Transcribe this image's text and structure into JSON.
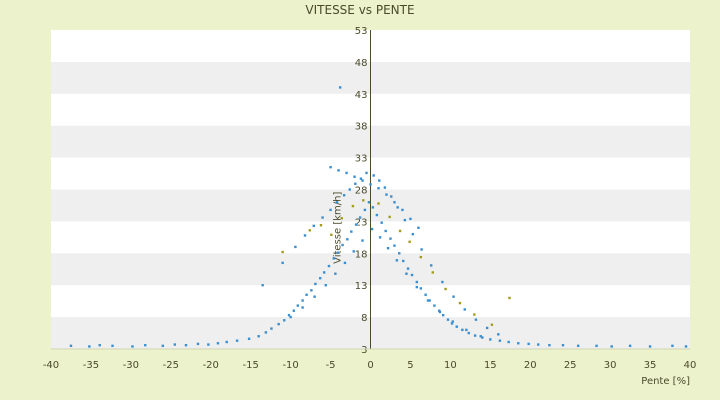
{
  "chart_data": {
    "type": "scatter",
    "title": "VITESSE vs PENTE",
    "xlabel": "Pente [%]",
    "ylabel": "Vitesse [km/h]",
    "xlim": [
      -40,
      40
    ],
    "ylim": [
      3,
      53
    ],
    "x_ticks": [
      -40,
      -35,
      -30,
      -25,
      -20,
      -15,
      -10,
      -5,
      0,
      5,
      10,
      15,
      20,
      25,
      30,
      35,
      40
    ],
    "y_ticks": [
      3,
      8,
      13,
      18,
      23,
      28,
      33,
      38,
      43,
      48,
      53
    ],
    "grid": "horizontal bands",
    "legend": "none",
    "series": [
      {
        "color": "#3c8fcf",
        "x": [
          -37.5,
          -35.2,
          -33.9,
          -32.3,
          -29.8,
          -28.2,
          -26.0,
          -24.5,
          -23.1,
          -21.6,
          -20.3,
          -19.1,
          -18.0,
          -16.7,
          -15.2,
          -14.0,
          -13.1,
          -12.4,
          -11.5,
          -10.8,
          -10.2,
          -9.6,
          -9.1,
          -8.5,
          -8.0,
          -7.4,
          -6.9,
          -6.3,
          -5.8,
          -5.2,
          -4.6,
          -4.1,
          -3.5,
          -2.9,
          -2.4,
          -1.8,
          -1.3,
          -0.7,
          -0.2,
          0.3,
          0.8,
          1.4,
          1.9,
          2.5,
          3.0,
          3.6,
          4.1,
          4.7,
          5.2,
          5.8,
          6.3,
          6.9,
          7.4,
          8.0,
          8.6,
          9.1,
          9.7,
          10.2,
          10.8,
          11.5,
          12.3,
          13.1,
          14.0,
          15.0,
          16.2,
          17.3,
          18.5,
          19.8,
          21.0,
          22.4,
          24.1,
          26.0,
          28.3,
          30.2,
          32.5,
          35.0,
          37.8,
          39.5
        ],
        "y": [
          3.5,
          3.4,
          3.6,
          3.5,
          3.4,
          3.6,
          3.5,
          3.7,
          3.6,
          3.8,
          3.7,
          3.9,
          4.1,
          4.3,
          4.6,
          5.0,
          5.6,
          6.2,
          6.9,
          7.5,
          8.3,
          9.0,
          9.8,
          10.6,
          11.5,
          12.2,
          13.2,
          14.1,
          15.0,
          16.0,
          17.2,
          18.1,
          19.3,
          20.2,
          21.4,
          22.5,
          23.6,
          24.8,
          26.0,
          25.2,
          24.0,
          22.8,
          21.5,
          20.3,
          19.2,
          18.0,
          16.8,
          15.6,
          14.6,
          13.5,
          12.5,
          11.5,
          10.6,
          9.8,
          9.0,
          8.3,
          7.6,
          7.0,
          6.5,
          6.0,
          5.5,
          5.1,
          4.8,
          4.5,
          4.3,
          4.1,
          3.9,
          3.8,
          3.7,
          3.6,
          3.6,
          3.5,
          3.5,
          3.4,
          3.5,
          3.4,
          3.5,
          3.4
        ]
      },
      {
        "color": "#3c8fcf",
        "x": [
          -13.5,
          -11.0,
          -9.4,
          -8.2,
          -7.1,
          -6.0,
          -5.0,
          -4.2,
          -3.3,
          -2.6,
          -1.9,
          -1.2,
          -0.5,
          0.4,
          1.1,
          1.8,
          2.6,
          3.4,
          4.3,
          5.3,
          6.4,
          7.6,
          9.0,
          10.4,
          11.8,
          13.2,
          14.6,
          16.0
        ],
        "y": [
          13.0,
          16.5,
          19.0,
          20.8,
          22.3,
          23.6,
          24.8,
          26.0,
          27.1,
          28.0,
          28.9,
          29.7,
          30.6,
          30.2,
          29.4,
          28.3,
          26.9,
          25.2,
          23.2,
          21.0,
          18.6,
          16.1,
          13.5,
          11.2,
          9.2,
          7.6,
          6.3,
          5.3
        ]
      },
      {
        "color": "#3c8fcf",
        "x": [
          -10.0,
          -8.5,
          -7.0,
          -5.6,
          -4.4,
          -3.2,
          -2.1,
          -1.0,
          0.2,
          1.2,
          2.2,
          3.3,
          4.5,
          5.8,
          7.2,
          8.7,
          10.3,
          12.0,
          13.8
        ],
        "y": [
          8.0,
          9.5,
          11.2,
          13.0,
          14.8,
          16.5,
          18.3,
          20.0,
          21.8,
          20.5,
          18.8,
          16.9,
          14.8,
          12.7,
          10.6,
          8.8,
          7.3,
          6.0,
          5.0
        ]
      },
      {
        "color": "#3c8fcf",
        "x": [
          -5.0,
          -4.0,
          -3.0,
          -2.0,
          -1.0,
          0.0,
          1.0,
          2.0,
          3.0,
          4.0,
          5.0,
          6.0
        ],
        "y": [
          31.5,
          31.0,
          30.6,
          30.0,
          29.4,
          28.8,
          28.2,
          27.2,
          26.0,
          24.8,
          23.4,
          22.0
        ]
      },
      {
        "color": "#3c8fcf",
        "x": [
          -3.8
        ],
        "y": [
          44.0
        ]
      },
      {
        "color": "#a39c1f",
        "x": [
          -11.0,
          -7.6,
          -6.2,
          -4.9,
          -3.6,
          -2.2,
          -0.9,
          1.0,
          2.4,
          3.7,
          4.9,
          6.3,
          7.8,
          9.4,
          11.2,
          13.0,
          15.2,
          17.4
        ],
        "y": [
          18.2,
          21.6,
          22.4,
          20.9,
          23.5,
          25.4,
          26.3,
          25.8,
          23.7,
          21.5,
          19.8,
          17.4,
          15.0,
          12.4,
          10.2,
          8.4,
          6.8,
          11.0
        ]
      }
    ]
  }
}
